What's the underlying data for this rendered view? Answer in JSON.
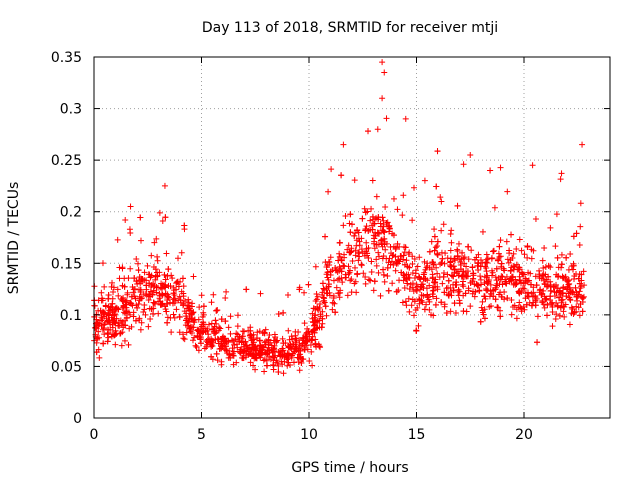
{
  "chart_data": {
    "type": "scatter",
    "title": "Day 113 of 2018, SRMTID for receiver mtji",
    "xlabel": "GPS time / hours",
    "ylabel": "SRMTID / TECUs",
    "xlim": [
      0,
      24
    ],
    "ylim": [
      0,
      0.35
    ],
    "xticks": [
      0,
      5,
      10,
      15,
      20
    ],
    "xtick_labels": [
      "0",
      "5",
      "10",
      "15",
      "20"
    ],
    "yticks": [
      0,
      0.05,
      0.1,
      0.15,
      0.2,
      0.25,
      0.3,
      0.35
    ],
    "ytick_labels": [
      "0",
      "0.05",
      "0.1",
      "0.15",
      "0.2",
      "0.25",
      "0.3",
      "0.35"
    ],
    "grid": true,
    "marker": "+",
    "series": [
      {
        "name": "SRMTID",
        "color": "#ff0000",
        "trend_x": [
          0,
          1,
          2,
          3,
          4,
          5,
          6,
          7,
          8,
          9,
          10,
          11,
          12,
          13,
          14,
          15,
          16,
          17,
          18,
          19,
          20,
          21,
          22,
          22.8
        ],
        "trend_y": [
          0.09,
          0.1,
          0.12,
          0.125,
          0.115,
          0.085,
          0.075,
          0.07,
          0.065,
          0.063,
          0.075,
          0.13,
          0.16,
          0.17,
          0.165,
          0.12,
          0.145,
          0.14,
          0.135,
          0.135,
          0.13,
          0.125,
          0.125,
          0.125
        ],
        "spread_y": [
          0.03,
          0.03,
          0.04,
          0.04,
          0.035,
          0.025,
          0.022,
          0.02,
          0.02,
          0.02,
          0.025,
          0.04,
          0.045,
          0.05,
          0.045,
          0.035,
          0.04,
          0.04,
          0.04,
          0.04,
          0.04,
          0.04,
          0.04,
          0.04
        ],
        "x_range": [
          0,
          22.8
        ],
        "n_points": 2300,
        "peaks": [
          {
            "x": 13.4,
            "y": 0.345
          },
          {
            "x": 13.5,
            "y": 0.335
          },
          {
            "x": 13.4,
            "y": 0.31
          },
          {
            "x": 14.5,
            "y": 0.29
          },
          {
            "x": 13.2,
            "y": 0.28
          },
          {
            "x": 11.6,
            "y": 0.265
          },
          {
            "x": 22.7,
            "y": 0.265
          },
          {
            "x": 17.5,
            "y": 0.255
          },
          {
            "x": 20.4,
            "y": 0.245
          },
          {
            "x": 3.3,
            "y": 0.225
          },
          {
            "x": 1.7,
            "y": 0.205
          }
        ]
      }
    ]
  }
}
